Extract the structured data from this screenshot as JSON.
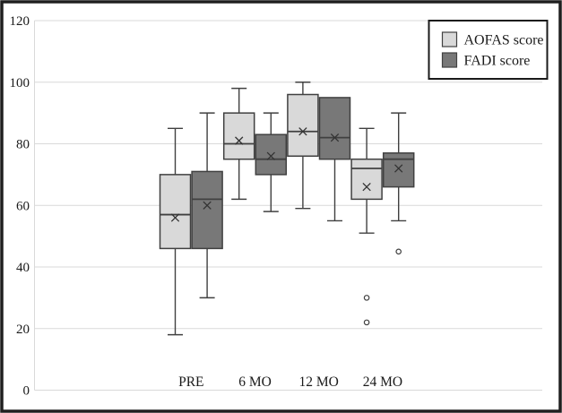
{
  "chart_data": {
    "type": "boxplot",
    "title": "",
    "xlabel": "",
    "ylabel": "",
    "categories": [
      "PRE",
      "6 MO",
      "12 MO",
      "24 MO"
    ],
    "yticks": [
      0,
      20,
      40,
      60,
      80,
      100,
      120
    ],
    "ylim": [
      0,
      120
    ],
    "grid": true,
    "legend_position": "top-right",
    "series": [
      {
        "name": "AOFAS score",
        "fill": "#d9d9d9",
        "boxes": [
          {
            "category": "PRE",
            "min": 18,
            "q1": 46,
            "median": 57,
            "mean": 56,
            "q3": 70,
            "max": 85,
            "outliers": []
          },
          {
            "category": "6 MO",
            "min": 62,
            "q1": 75,
            "median": 80,
            "mean": 81,
            "q3": 90,
            "max": 98,
            "outliers": []
          },
          {
            "category": "12 MO",
            "min": 59,
            "q1": 76,
            "median": 84,
            "mean": 84,
            "q3": 96,
            "max": 100,
            "outliers": []
          },
          {
            "category": "24 MO",
            "min": 51,
            "q1": 62,
            "median": 72,
            "mean": 66,
            "q3": 75,
            "max": 85,
            "outliers": [
              30,
              22
            ]
          }
        ]
      },
      {
        "name": "FADI score",
        "fill": "#787878",
        "boxes": [
          {
            "category": "PRE",
            "min": 30,
            "q1": 46,
            "median": 62,
            "mean": 60,
            "q3": 71,
            "max": 90,
            "outliers": []
          },
          {
            "category": "6 MO",
            "min": 58,
            "q1": 70,
            "median": 75,
            "mean": 76,
            "q3": 83,
            "max": 90,
            "outliers": []
          },
          {
            "category": "12 MO",
            "min": 55,
            "q1": 75,
            "median": 82,
            "mean": 82,
            "q3": 95,
            "max": 95,
            "outliers": []
          },
          {
            "category": "24 MO",
            "min": 55,
            "q1": 66,
            "median": 75,
            "mean": 72,
            "q3": 77,
            "max": 90,
            "outliers": [
              45
            ]
          }
        ]
      }
    ]
  },
  "legend": {
    "items": [
      {
        "label": "AOFAS score",
        "swatch": "#d9d9d9"
      },
      {
        "label": "FADI score",
        "swatch": "#787878"
      }
    ]
  },
  "colors": {
    "background": "#ffffff",
    "figure_border": "#1f1f1f",
    "grid": "#d9d9d9",
    "box_stroke": "#404040",
    "mean_marker": "#333333",
    "text": "#1a1a1a",
    "legend_border": "#1a1a1a"
  }
}
